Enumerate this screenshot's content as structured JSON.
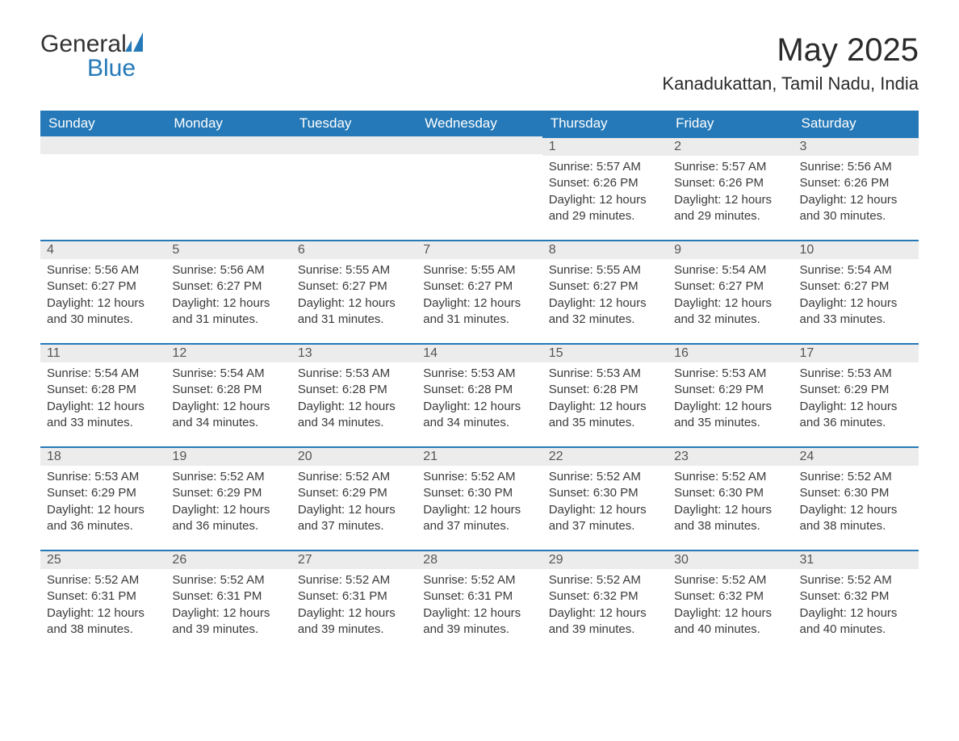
{
  "brand": {
    "part1": "General",
    "part2": "Blue"
  },
  "title": "May 2025",
  "location": "Kanadukattan, Tamil Nadu, India",
  "colors": {
    "header_bg": "#2579b8",
    "header_text": "#ffffff",
    "daynum_bg": "#ececec",
    "daynum_border": "#2579b8",
    "body_text": "#3a3a3a",
    "page_bg": "#ffffff"
  },
  "day_headers": [
    "Sunday",
    "Monday",
    "Tuesday",
    "Wednesday",
    "Thursday",
    "Friday",
    "Saturday"
  ],
  "weeks": [
    [
      null,
      null,
      null,
      null,
      {
        "n": "1",
        "sr": "5:57 AM",
        "ss": "6:26 PM",
        "dl": "12 hours and 29 minutes."
      },
      {
        "n": "2",
        "sr": "5:57 AM",
        "ss": "6:26 PM",
        "dl": "12 hours and 29 minutes."
      },
      {
        "n": "3",
        "sr": "5:56 AM",
        "ss": "6:26 PM",
        "dl": "12 hours and 30 minutes."
      }
    ],
    [
      {
        "n": "4",
        "sr": "5:56 AM",
        "ss": "6:27 PM",
        "dl": "12 hours and 30 minutes."
      },
      {
        "n": "5",
        "sr": "5:56 AM",
        "ss": "6:27 PM",
        "dl": "12 hours and 31 minutes."
      },
      {
        "n": "6",
        "sr": "5:55 AM",
        "ss": "6:27 PM",
        "dl": "12 hours and 31 minutes."
      },
      {
        "n": "7",
        "sr": "5:55 AM",
        "ss": "6:27 PM",
        "dl": "12 hours and 31 minutes."
      },
      {
        "n": "8",
        "sr": "5:55 AM",
        "ss": "6:27 PM",
        "dl": "12 hours and 32 minutes."
      },
      {
        "n": "9",
        "sr": "5:54 AM",
        "ss": "6:27 PM",
        "dl": "12 hours and 32 minutes."
      },
      {
        "n": "10",
        "sr": "5:54 AM",
        "ss": "6:27 PM",
        "dl": "12 hours and 33 minutes."
      }
    ],
    [
      {
        "n": "11",
        "sr": "5:54 AM",
        "ss": "6:28 PM",
        "dl": "12 hours and 33 minutes."
      },
      {
        "n": "12",
        "sr": "5:54 AM",
        "ss": "6:28 PM",
        "dl": "12 hours and 34 minutes."
      },
      {
        "n": "13",
        "sr": "5:53 AM",
        "ss": "6:28 PM",
        "dl": "12 hours and 34 minutes."
      },
      {
        "n": "14",
        "sr": "5:53 AM",
        "ss": "6:28 PM",
        "dl": "12 hours and 34 minutes."
      },
      {
        "n": "15",
        "sr": "5:53 AM",
        "ss": "6:28 PM",
        "dl": "12 hours and 35 minutes."
      },
      {
        "n": "16",
        "sr": "5:53 AM",
        "ss": "6:29 PM",
        "dl": "12 hours and 35 minutes."
      },
      {
        "n": "17",
        "sr": "5:53 AM",
        "ss": "6:29 PM",
        "dl": "12 hours and 36 minutes."
      }
    ],
    [
      {
        "n": "18",
        "sr": "5:53 AM",
        "ss": "6:29 PM",
        "dl": "12 hours and 36 minutes."
      },
      {
        "n": "19",
        "sr": "5:52 AM",
        "ss": "6:29 PM",
        "dl": "12 hours and 36 minutes."
      },
      {
        "n": "20",
        "sr": "5:52 AM",
        "ss": "6:29 PM",
        "dl": "12 hours and 37 minutes."
      },
      {
        "n": "21",
        "sr": "5:52 AM",
        "ss": "6:30 PM",
        "dl": "12 hours and 37 minutes."
      },
      {
        "n": "22",
        "sr": "5:52 AM",
        "ss": "6:30 PM",
        "dl": "12 hours and 37 minutes."
      },
      {
        "n": "23",
        "sr": "5:52 AM",
        "ss": "6:30 PM",
        "dl": "12 hours and 38 minutes."
      },
      {
        "n": "24",
        "sr": "5:52 AM",
        "ss": "6:30 PM",
        "dl": "12 hours and 38 minutes."
      }
    ],
    [
      {
        "n": "25",
        "sr": "5:52 AM",
        "ss": "6:31 PM",
        "dl": "12 hours and 38 minutes."
      },
      {
        "n": "26",
        "sr": "5:52 AM",
        "ss": "6:31 PM",
        "dl": "12 hours and 39 minutes."
      },
      {
        "n": "27",
        "sr": "5:52 AM",
        "ss": "6:31 PM",
        "dl": "12 hours and 39 minutes."
      },
      {
        "n": "28",
        "sr": "5:52 AM",
        "ss": "6:31 PM",
        "dl": "12 hours and 39 minutes."
      },
      {
        "n": "29",
        "sr": "5:52 AM",
        "ss": "6:32 PM",
        "dl": "12 hours and 39 minutes."
      },
      {
        "n": "30",
        "sr": "5:52 AM",
        "ss": "6:32 PM",
        "dl": "12 hours and 40 minutes."
      },
      {
        "n": "31",
        "sr": "5:52 AM",
        "ss": "6:32 PM",
        "dl": "12 hours and 40 minutes."
      }
    ]
  ],
  "labels": {
    "sunrise": "Sunrise:",
    "sunset": "Sunset:",
    "daylight": "Daylight:"
  }
}
